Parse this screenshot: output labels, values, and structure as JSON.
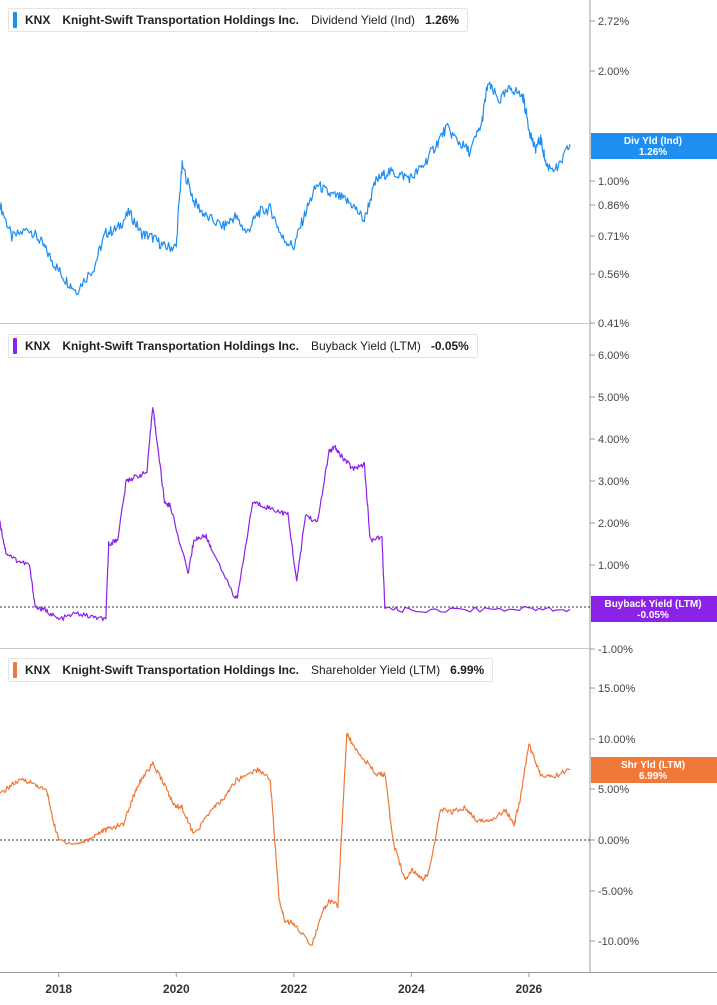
{
  "colors": {
    "dividend": "#1f8ef1",
    "buyback": "#8b22e8",
    "shareholder": "#f0793a",
    "axis": "#9a9a9a",
    "zero_line": "#333333"
  },
  "panels": [
    {
      "id": "dividend",
      "ticker": "KNX",
      "company": "Knight-Swift Transportation Holdings Inc.",
      "metric": "Dividend Yield (Ind)",
      "value": "1.26%",
      "flag_line1": "Div Yld (Ind)",
      "flag_line2": "1.26%"
    },
    {
      "id": "buyback",
      "ticker": "KNX",
      "company": "Knight-Swift Transportation Holdings Inc.",
      "metric": "Buyback Yield (LTM)",
      "value": "-0.05%",
      "flag_line1": "Buyback Yield (LTM)",
      "flag_line2": "-0.05%"
    },
    {
      "id": "shareholder",
      "ticker": "KNX",
      "company": "Knight-Swift Transportation Holdings Inc.",
      "metric": "Shareholder Yield (LTM)",
      "value": "6.99%",
      "flag_line1": "Shr Yld (LTM)",
      "flag_line2": "6.99%"
    }
  ],
  "chart_data": [
    {
      "type": "line",
      "name": "Dividend Yield (Ind)",
      "y_scale": "log",
      "y_ticks": [
        "2.72%",
        "2.00%",
        "1.00%",
        "0.86%",
        "0.71%",
        "0.56%",
        "0.41%"
      ],
      "x": [
        2017.0,
        2017.2,
        2017.5,
        2017.7,
        2017.9,
        2018.1,
        2018.3,
        2018.6,
        2018.8,
        2019.0,
        2019.2,
        2019.4,
        2019.6,
        2019.8,
        2020.0,
        2020.1,
        2020.3,
        2020.5,
        2020.8,
        2021.0,
        2021.2,
        2021.4,
        2021.6,
        2021.8,
        2022.0,
        2022.2,
        2022.4,
        2022.6,
        2022.8,
        2023.0,
        2023.2,
        2023.4,
        2023.6,
        2023.8,
        2024.0,
        2024.2,
        2024.4,
        2024.6,
        2024.8,
        2025.0,
        2025.2,
        2025.3,
        2025.5,
        2025.7,
        2025.9,
        2026.0,
        2026.1,
        2026.2,
        2026.3,
        2026.5,
        2026.7
      ],
      "y": [
        0.86,
        0.7,
        0.74,
        0.68,
        0.6,
        0.54,
        0.5,
        0.58,
        0.72,
        0.74,
        0.82,
        0.72,
        0.7,
        0.66,
        0.66,
        1.1,
        0.88,
        0.8,
        0.75,
        0.8,
        0.72,
        0.82,
        0.84,
        0.7,
        0.66,
        0.82,
        0.98,
        0.92,
        0.9,
        0.86,
        0.78,
        1.0,
        1.06,
        1.04,
        1.02,
        1.1,
        1.24,
        1.4,
        1.28,
        1.2,
        1.44,
        1.84,
        1.66,
        1.8,
        1.7,
        1.4,
        1.22,
        1.3,
        1.1,
        1.08,
        1.26
      ]
    },
    {
      "type": "line",
      "name": "Buyback Yield (LTM)",
      "y_ticks": [
        "6.00%",
        "5.00%",
        "4.00%",
        "3.00%",
        "2.00%",
        "1.00%",
        "-1.00%"
      ],
      "x": [
        2017.0,
        2017.1,
        2017.3,
        2017.5,
        2017.6,
        2017.8,
        2018.0,
        2018.3,
        2018.6,
        2018.8,
        2018.85,
        2019.0,
        2019.15,
        2019.3,
        2019.5,
        2019.6,
        2019.65,
        2019.8,
        2019.9,
        2020.2,
        2020.3,
        2020.5,
        2020.6,
        2021.0,
        2021.05,
        2021.3,
        2021.5,
        2021.7,
        2021.9,
        2022.05,
        2022.2,
        2022.4,
        2022.6,
        2022.7,
        2022.8,
        2023.0,
        2023.2,
        2023.3,
        2023.5,
        2023.55,
        2024.0,
        2025.0,
        2026.0,
        2026.7
      ],
      "y": [
        2.0,
        1.3,
        1.1,
        1.0,
        0.0,
        -0.1,
        -0.3,
        -0.15,
        -0.25,
        -0.3,
        1.5,
        1.6,
        3.0,
        3.1,
        3.2,
        4.8,
        4.2,
        2.5,
        2.4,
        0.8,
        1.6,
        1.7,
        1.4,
        0.2,
        0.3,
        2.5,
        2.4,
        2.3,
        2.2,
        0.6,
        2.2,
        2.0,
        3.7,
        3.8,
        3.6,
        3.3,
        3.4,
        1.6,
        1.65,
        -0.05,
        -0.08,
        -0.06,
        -0.04,
        -0.05
      ]
    },
    {
      "type": "line",
      "name": "Shareholder Yield (LTM)",
      "y_ticks": [
        "15.00%",
        "10.00%",
        "5.00%",
        "0.00%",
        "-5.00%",
        "-10.00%"
      ],
      "x": [
        2017.0,
        2017.2,
        2017.4,
        2017.6,
        2017.8,
        2017.9,
        2018.0,
        2018.3,
        2018.5,
        2018.7,
        2018.9,
        2019.1,
        2019.3,
        2019.4,
        2019.6,
        2019.8,
        2019.95,
        2020.1,
        2020.3,
        2020.6,
        2020.8,
        2021.0,
        2021.2,
        2021.4,
        2021.6,
        2021.75,
        2021.85,
        2022.0,
        2022.3,
        2022.5,
        2022.6,
        2022.75,
        2022.9,
        2023.0,
        2023.2,
        2023.4,
        2023.55,
        2023.7,
        2023.9,
        2024.0,
        2024.2,
        2024.3,
        2024.5,
        2024.7,
        2024.9,
        2025.1,
        2025.3,
        2025.6,
        2025.75,
        2025.85,
        2026.0,
        2026.1,
        2026.2,
        2026.4,
        2026.7
      ],
      "y": [
        4.5,
        5.5,
        6.0,
        5.5,
        4.8,
        2.0,
        0.0,
        -0.4,
        0.0,
        0.8,
        1.2,
        1.6,
        4.8,
        6.0,
        7.5,
        5.5,
        3.5,
        3.2,
        0.5,
        3.0,
        4.0,
        5.8,
        6.5,
        7.0,
        6.0,
        -6.0,
        -8.0,
        -8.2,
        -10.5,
        -7.0,
        -6.0,
        -6.5,
        10.5,
        9.5,
        8.0,
        6.5,
        6.5,
        -0.5,
        -4.0,
        -3.0,
        -3.8,
        -3.2,
        3.0,
        2.8,
        3.2,
        2.0,
        1.8,
        3.0,
        1.5,
        4.0,
        9.5,
        8.0,
        6.5,
        6.2,
        6.99
      ]
    }
  ],
  "x_axis": {
    "labels": [
      "2018",
      "2020",
      "2022",
      "2024",
      "2026"
    ],
    "values": [
      2018,
      2020,
      2022,
      2024,
      2026
    ]
  }
}
